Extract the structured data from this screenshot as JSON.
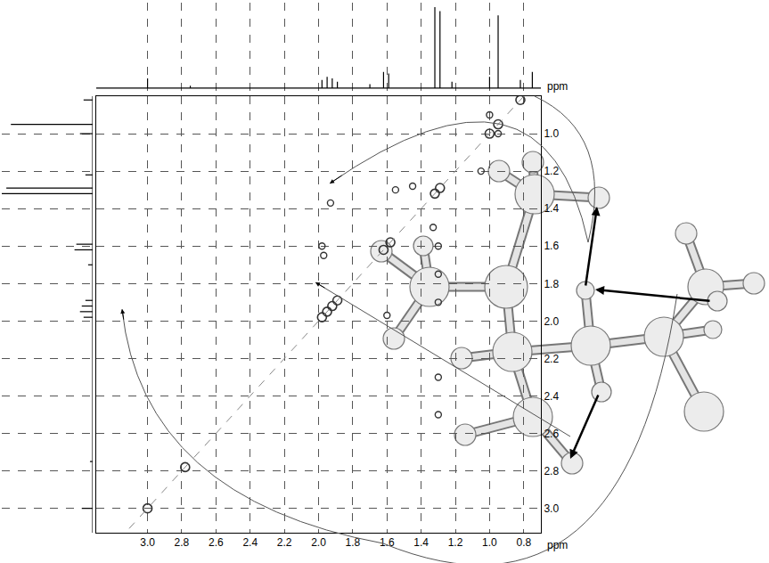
{
  "chart_data": {
    "type": "nmr_2d",
    "x_label": "ppm",
    "y_label": "ppm",
    "xlim": [
      3.3,
      0.7
    ],
    "ylim": [
      3.13,
      0.8
    ],
    "xticks": [
      {
        "value": 3,
        "label": "3.0"
      },
      2.8,
      2.6,
      2.4,
      2.2,
      {
        "value": 2,
        "label": "2.0"
      },
      1.8,
      1.6,
      1.4,
      1.2,
      {
        "value": 1,
        "label": "1.0"
      },
      0.8
    ],
    "yticks": [
      {
        "value": 1,
        "label": "1.0"
      },
      1.2,
      1.4,
      1.6,
      1.8,
      {
        "value": 2,
        "label": "2.0"
      },
      2.2,
      2.4,
      2.6,
      2.8,
      {
        "value": 3,
        "label": "3.0"
      }
    ],
    "grid": true,
    "color": "#333333",
    "marker": "circle-open",
    "diagonal_peaks": {
      "x": [
        3.0,
        2.78,
        1.98,
        1.95,
        1.92,
        1.89,
        1.62,
        1.58,
        1.32,
        1.29,
        1.0,
        0.95,
        0.82
      ],
      "y": [
        3.0,
        2.78,
        1.98,
        1.95,
        1.92,
        1.89,
        1.62,
        1.58,
        1.32,
        1.29,
        1.0,
        0.95,
        0.82
      ]
    },
    "cross_peaks": {
      "x": [
        1.93,
        1.98,
        1.97,
        1.6,
        1.3,
        1.3,
        1.3,
        1.33,
        1.55,
        1.45,
        1.0,
        0.95,
        1.3,
        1.3,
        1.05
      ],
      "y": [
        1.37,
        1.6,
        1.65,
        1.97,
        1.6,
        1.75,
        1.9,
        1.5,
        1.3,
        1.28,
        0.9,
        1.0,
        2.3,
        2.5,
        1.2
      ]
    },
    "projection": {
      "shift": [
        3.0,
        2.75,
        1.98,
        1.95,
        1.92,
        1.89,
        1.7,
        1.62,
        1.59,
        1.32,
        1.29,
        1.22,
        1.0,
        0.95,
        0.82,
        0.75
      ],
      "intensity": [
        12,
        3,
        10,
        14,
        12,
        8,
        5,
        20,
        18,
        100,
        95,
        8,
        14,
        90,
        10,
        20
      ]
    }
  }
}
